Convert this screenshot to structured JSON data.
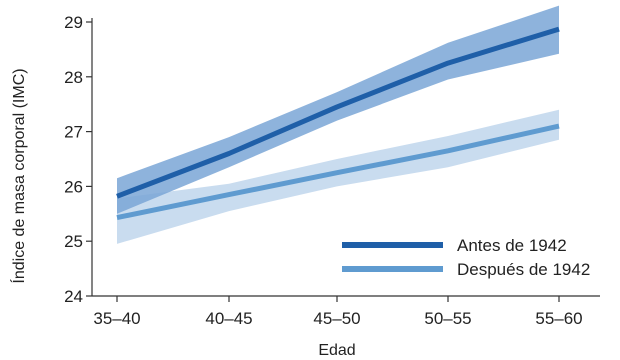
{
  "chart_data": {
    "type": "line",
    "title": "",
    "xlabel": "Edad",
    "ylabel": "Índice de masa corporal (IMC)",
    "categories": [
      "35–40",
      "40–45",
      "45–50",
      "50–55",
      "55–60"
    ],
    "ylim": [
      24,
      29
    ],
    "yticks": [
      24,
      25,
      26,
      27,
      28,
      29
    ],
    "grid": false,
    "legend_position": "bottom-right",
    "series": [
      {
        "name": "Antes de 1942",
        "color": "#1f5fa8",
        "band_color": "#7aa6d6",
        "values": [
          25.82,
          26.6,
          27.45,
          28.25,
          28.87
        ],
        "lower": [
          25.5,
          26.35,
          27.2,
          27.95,
          28.42
        ],
        "upper": [
          26.15,
          26.9,
          27.72,
          28.62,
          29.3
        ]
      },
      {
        "name": "Después de 1942",
        "color": "#5f9bd0",
        "band_color": "#c9dcef",
        "values": [
          25.43,
          25.85,
          26.25,
          26.65,
          27.1
        ],
        "lower": [
          24.95,
          25.55,
          26.0,
          26.35,
          26.85
        ],
        "upper": [
          25.78,
          26.05,
          26.5,
          26.92,
          27.4
        ]
      }
    ]
  }
}
